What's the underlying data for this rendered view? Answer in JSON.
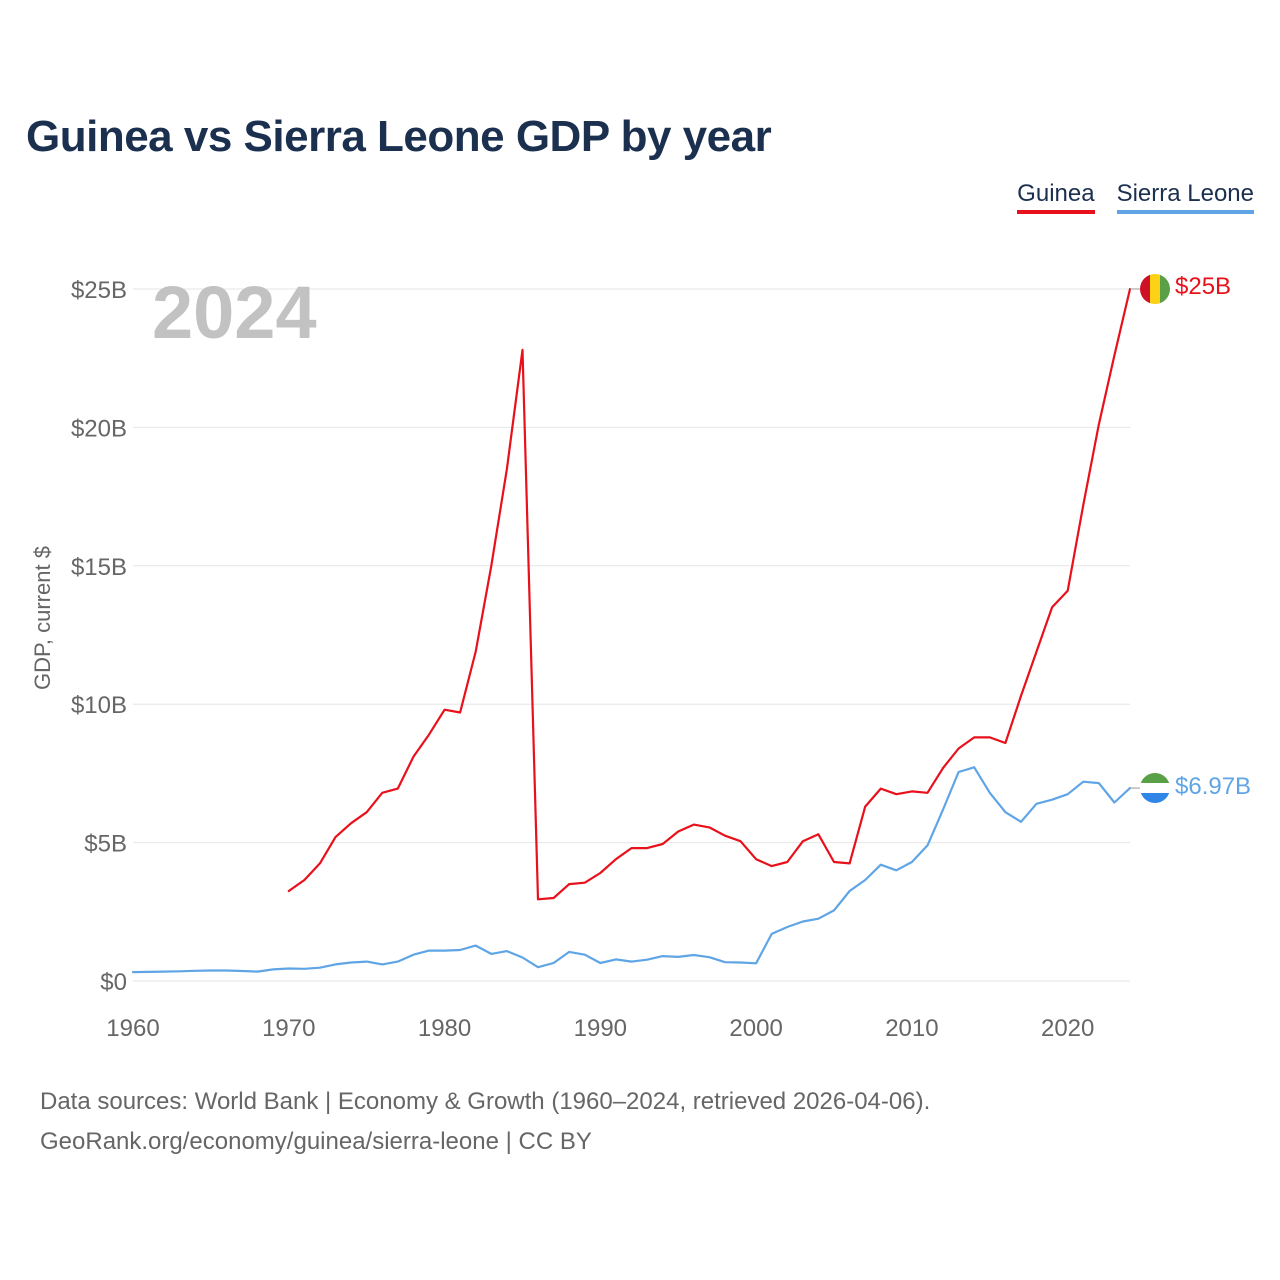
{
  "title": "Guinea vs Sierra Leone GDP by year",
  "year_label": "2024",
  "footer": {
    "line1": "Data sources: World Bank | Economy & Growth (1960–2024, retrieved 2026-04-06).",
    "line2": "GeoRank.org/economy/guinea/sierra-leone | CC BY"
  },
  "chart_data": {
    "type": "line",
    "title": "Guinea vs Sierra Leone GDP by year",
    "xlabel": "",
    "ylabel": "GDP, current $",
    "xlim": [
      1960,
      2024
    ],
    "ylim": [
      0,
      25
    ],
    "x_ticks": [
      {
        "value": 1960,
        "label": "1960"
      },
      {
        "value": 1970,
        "label": "1970"
      },
      {
        "value": 1980,
        "label": "1980"
      },
      {
        "value": 1990,
        "label": "1990"
      },
      {
        "value": 2000,
        "label": "2000"
      },
      {
        "value": 2010,
        "label": "2010"
      },
      {
        "value": 2020,
        "label": "2020"
      }
    ],
    "y_ticks": [
      {
        "value": 0,
        "label": "$0"
      },
      {
        "value": 5,
        "label": "$5B"
      },
      {
        "value": 10,
        "label": "$10B"
      },
      {
        "value": 15,
        "label": "$15B"
      },
      {
        "value": 20,
        "label": "$20B"
      },
      {
        "value": 25,
        "label": "$25B"
      }
    ],
    "grid": true,
    "legend_position": "top-right",
    "series": [
      {
        "name": "Guinea",
        "color": "#e8111b",
        "end_label": "$25B",
        "start_year": 1970,
        "values": [
          3.25,
          3.65,
          4.25,
          5.2,
          5.7,
          6.1,
          6.8,
          6.95,
          8.1,
          8.9,
          9.8,
          9.7,
          11.9,
          15.0,
          18.5,
          22.8,
          2.95,
          3.0,
          3.5,
          3.55,
          3.9,
          4.4,
          4.8,
          4.8,
          4.95,
          5.4,
          5.65,
          5.55,
          5.25,
          5.05,
          4.4,
          4.15,
          4.3,
          5.05,
          5.3,
          4.3,
          4.25,
          6.3,
          6.95,
          6.75,
          6.85,
          6.8,
          7.7,
          8.4,
          8.8,
          8.8,
          8.6,
          10.3,
          11.9,
          13.5,
          14.1,
          17.2,
          20.1,
          22.6,
          25.0
        ]
      },
      {
        "name": "Sierra Leone",
        "color": "#5fa5e6",
        "end_label": "$6.97B",
        "start_year": 1960,
        "values": [
          0.32,
          0.33,
          0.34,
          0.35,
          0.37,
          0.38,
          0.38,
          0.36,
          0.34,
          0.42,
          0.45,
          0.44,
          0.48,
          0.6,
          0.67,
          0.7,
          0.6,
          0.7,
          0.95,
          1.1,
          1.1,
          1.12,
          1.28,
          0.98,
          1.08,
          0.85,
          0.5,
          0.65,
          1.05,
          0.95,
          0.65,
          0.78,
          0.7,
          0.77,
          0.9,
          0.87,
          0.94,
          0.86,
          0.68,
          0.67,
          0.64,
          1.7,
          1.95,
          2.15,
          2.25,
          2.55,
          3.25,
          3.65,
          4.2,
          4.0,
          4.3,
          4.9,
          6.2,
          7.55,
          7.72,
          6.8,
          6.1,
          5.75,
          6.4,
          6.55,
          6.75,
          7.2,
          7.15,
          6.45,
          6.97
        ]
      }
    ]
  }
}
